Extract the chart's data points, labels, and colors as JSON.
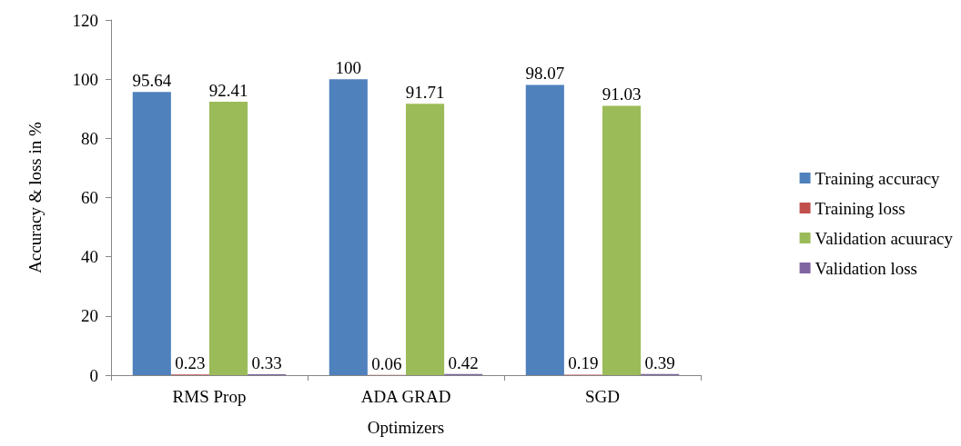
{
  "chart_data": {
    "type": "bar",
    "xlabel": "Optimizers",
    "ylabel": "Accuracy & loss in %",
    "categories": [
      "RMS Prop",
      "ADA GRAD",
      "SGD"
    ],
    "series": [
      {
        "name": "Training accuracy",
        "color": "#4f81bd",
        "values": [
          95.64,
          100,
          98.07
        ]
      },
      {
        "name": "Training loss",
        "color": "#c0504d",
        "values": [
          0.23,
          0.06,
          0.19
        ]
      },
      {
        "name": "Validation acuuracy",
        "color": "#9bbb59",
        "values": [
          92.41,
          91.71,
          91.03
        ]
      },
      {
        "name": "Validation loss",
        "color": "#8064a2",
        "values": [
          0.33,
          0.42,
          0.39
        ]
      }
    ],
    "ylim": [
      0,
      120
    ],
    "yticks": [
      0,
      20,
      40,
      60,
      80,
      100,
      120
    ],
    "grid": false,
    "legend": "right",
    "data_labels": true
  }
}
